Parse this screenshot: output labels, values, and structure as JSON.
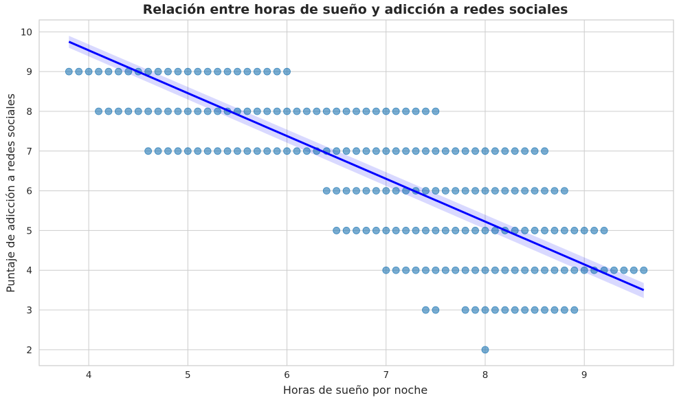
{
  "chart_data": {
    "type": "scatter",
    "title": "Relación entre horas de sueño y adicción a redes sociales",
    "xlabel": "Horas de sueño por noche",
    "ylabel": "Puntaje de adicción a redes sociales",
    "xlim": [
      3.5,
      9.9
    ],
    "ylim": [
      1.6,
      10.3
    ],
    "xticks": [
      4,
      5,
      6,
      7,
      8,
      9
    ],
    "yticks": [
      2,
      3,
      4,
      5,
      6,
      7,
      8,
      9,
      10
    ],
    "grid": true,
    "point_color": "#1f77b4",
    "line_color": "#0000ff",
    "series": [
      {
        "rows": [
          {
            "y": 9,
            "x": [
              3.8,
              3.9,
              4.0,
              4.1,
              4.2,
              4.3,
              4.4,
              4.5,
              4.6,
              4.7,
              4.8,
              4.9,
              5.0,
              5.1,
              5.2,
              5.3,
              5.4,
              5.5,
              5.6,
              5.7,
              5.8,
              5.9,
              6.0
            ]
          },
          {
            "y": 8,
            "x": [
              4.1,
              4.2,
              4.3,
              4.4,
              4.5,
              4.6,
              4.7,
              4.8,
              4.9,
              5.0,
              5.1,
              5.2,
              5.3,
              5.4,
              5.5,
              5.6,
              5.7,
              5.8,
              5.9,
              6.0,
              6.1,
              6.2,
              6.3,
              6.4,
              6.5,
              6.6,
              6.7,
              6.8,
              6.9,
              7.0,
              7.1,
              7.2,
              7.3,
              7.4,
              7.5
            ]
          },
          {
            "y": 7,
            "x": [
              4.6,
              4.7,
              4.8,
              4.9,
              5.0,
              5.1,
              5.2,
              5.3,
              5.4,
              5.5,
              5.6,
              5.7,
              5.8,
              5.9,
              6.0,
              6.1,
              6.2,
              6.3,
              6.4,
              6.5,
              6.6,
              6.7,
              6.8,
              6.9,
              7.0,
              7.1,
              7.2,
              7.3,
              7.4,
              7.5,
              7.6,
              7.7,
              7.8,
              7.9,
              8.0,
              8.1,
              8.2,
              8.3,
              8.4,
              8.5,
              8.6
            ]
          },
          {
            "y": 6,
            "x": [
              6.4,
              6.5,
              6.6,
              6.7,
              6.8,
              6.9,
              7.0,
              7.1,
              7.2,
              7.3,
              7.4,
              7.5,
              7.6,
              7.7,
              7.8,
              7.9,
              8.0,
              8.1,
              8.2,
              8.3,
              8.4,
              8.5,
              8.6,
              8.7,
              8.8
            ]
          },
          {
            "y": 5,
            "x": [
              6.5,
              6.6,
              6.7,
              6.8,
              6.9,
              7.0,
              7.1,
              7.2,
              7.3,
              7.4,
              7.5,
              7.6,
              7.7,
              7.8,
              7.9,
              8.0,
              8.1,
              8.2,
              8.3,
              8.4,
              8.5,
              8.6,
              8.7,
              8.8,
              8.9,
              9.0,
              9.1,
              9.2
            ]
          },
          {
            "y": 4,
            "x": [
              7.0,
              7.1,
              7.2,
              7.3,
              7.4,
              7.5,
              7.6,
              7.7,
              7.8,
              7.9,
              8.0,
              8.1,
              8.2,
              8.3,
              8.4,
              8.5,
              8.6,
              8.7,
              8.8,
              8.9,
              9.0,
              9.1,
              9.2,
              9.3,
              9.4,
              9.5,
              9.6
            ]
          },
          {
            "y": 3,
            "x": [
              7.4,
              7.5,
              7.8,
              7.9,
              8.0,
              8.1,
              8.2,
              8.3,
              8.4,
              8.5,
              8.6,
              8.7,
              8.8,
              8.9
            ]
          },
          {
            "y": 2,
            "x": [
              8.0
            ]
          }
        ]
      }
    ],
    "regression": {
      "x": [
        3.8,
        9.6
      ],
      "y": [
        9.75,
        3.5
      ],
      "ci_upper": [
        9.9,
        3.68
      ],
      "ci_lower": [
        9.6,
        3.3
      ]
    }
  }
}
